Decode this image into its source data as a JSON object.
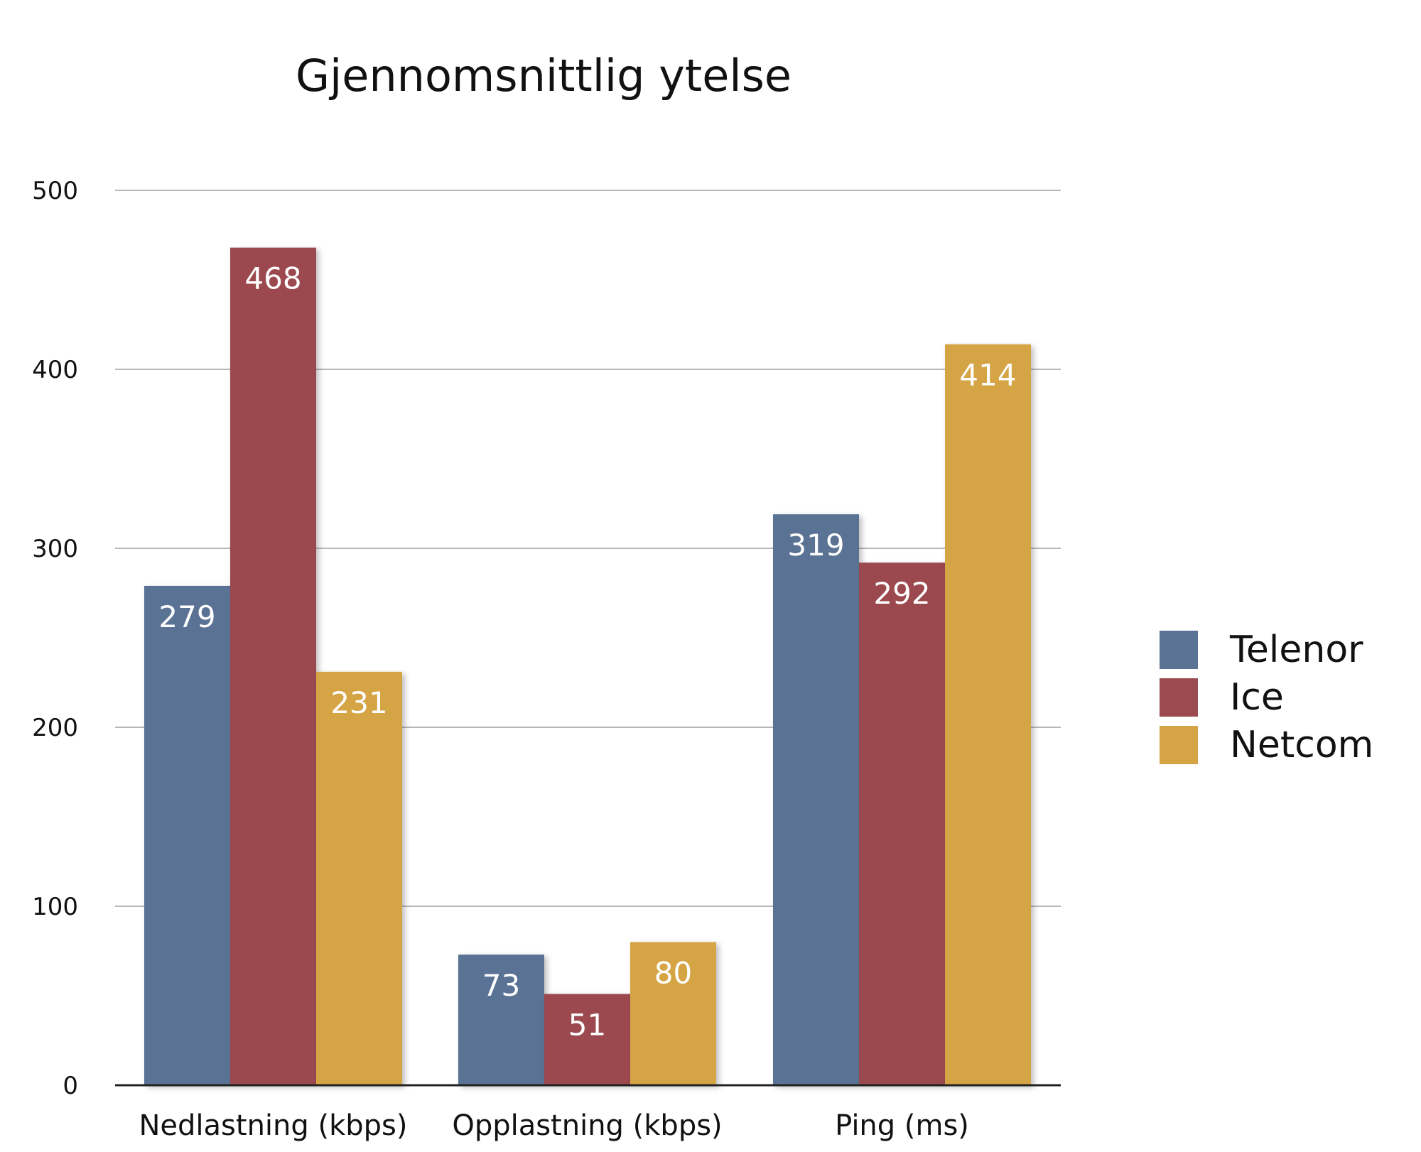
{
  "chart_data": {
    "type": "bar",
    "title": "Gjennomsnittlig ytelse",
    "xlabel": "",
    "ylabel": "",
    "categories": [
      "Nedlastning (kbps)",
      "Opplastning (kbps)",
      "Ping (ms)"
    ],
    "series": [
      {
        "name": "Telenor",
        "color": "#5a7394",
        "values": [
          279,
          73,
          319
        ]
      },
      {
        "name": "Ice",
        "color": "#9b4a50",
        "values": [
          468,
          51,
          292
        ]
      },
      {
        "name": "Netcom",
        "color": "#d5a444",
        "values": [
          231,
          80,
          414
        ]
      }
    ],
    "ylim": [
      0,
      500
    ],
    "yticks": [
      0,
      100,
      200,
      300,
      400,
      500
    ],
    "grid": true,
    "data_labels": true,
    "legend_position": "right"
  }
}
